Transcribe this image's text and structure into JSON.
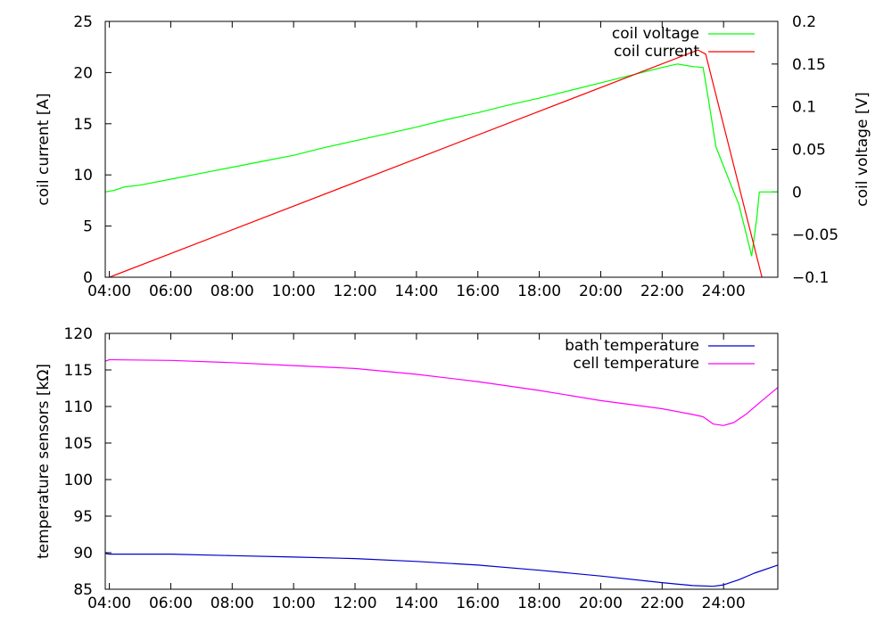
{
  "chart_data": [
    {
      "type": "line",
      "ylabel": "coil current [A]",
      "y2label": "coil voltage [V]",
      "xlim": [
        "03:52",
        "25:46"
      ],
      "ylim": [
        0,
        25
      ],
      "y2lim": [
        -0.1,
        0.2
      ],
      "x_ticks": [
        "04:00",
        "06:00",
        "08:00",
        "10:00",
        "12:00",
        "14:00",
        "16:00",
        "18:00",
        "20:00",
        "22:00",
        "24:00"
      ],
      "y_ticks": [
        "0",
        "5",
        "10",
        "15",
        "20",
        "25"
      ],
      "y2_ticks": [
        "−0.1",
        "−0.05",
        "0",
        "0.05",
        "0.1",
        "0.15",
        "0.2"
      ],
      "legend_position": "top-right",
      "series": [
        {
          "name": "coil voltage",
          "axis": "right",
          "color": "#00ff00",
          "x": [
            "03:52",
            "04:10",
            "04:30",
            "05:00",
            "06:00",
            "07:00",
            "08:00",
            "09:00",
            "10:00",
            "11:00",
            "12:00",
            "13:00",
            "14:00",
            "15:00",
            "16:00",
            "17:00",
            "18:00",
            "19:00",
            "20:00",
            "21:00",
            "22:00",
            "22:30",
            "23:00",
            "23:20",
            "23:30",
            "23:45",
            "24:00",
            "24:30",
            "24:55",
            "25:05",
            "25:10",
            "25:46"
          ],
          "y": [
            0.0,
            0.002,
            0.006,
            0.008,
            0.015,
            0.022,
            0.029,
            0.036,
            0.043,
            0.052,
            0.06,
            0.068,
            0.076,
            0.085,
            0.093,
            0.102,
            0.11,
            0.119,
            0.128,
            0.137,
            0.146,
            0.15,
            0.147,
            0.146,
            0.11,
            0.053,
            0.03,
            -0.015,
            -0.075,
            -0.03,
            0.0,
            0.0
          ]
        },
        {
          "name": "coil current",
          "axis": "left",
          "color": "#ff0000",
          "x": [
            "04:00",
            "23:10",
            "23:25",
            "25:15"
          ],
          "y": [
            0.0,
            22.2,
            21.8,
            0.0
          ]
        }
      ]
    },
    {
      "type": "line",
      "ylabel": "temperature sensors [kΩ]",
      "xlim": [
        "03:52",
        "25:46"
      ],
      "ylim": [
        85,
        120
      ],
      "x_ticks": [
        "04:00",
        "06:00",
        "08:00",
        "10:00",
        "12:00",
        "14:00",
        "16:00",
        "18:00",
        "20:00",
        "22:00",
        "24:00"
      ],
      "y_ticks": [
        "85",
        "90",
        "95",
        "100",
        "105",
        "110",
        "115",
        "120"
      ],
      "legend_position": "top-right",
      "series": [
        {
          "name": "bath temperature",
          "color": "#0000cc",
          "x": [
            "03:52",
            "04:00",
            "06:00",
            "08:00",
            "10:00",
            "12:00",
            "14:00",
            "16:00",
            "18:00",
            "20:00",
            "22:00",
            "23:00",
            "23:40",
            "24:00",
            "24:30",
            "25:00",
            "25:46"
          ],
          "y": [
            89.9,
            89.8,
            89.8,
            89.6,
            89.4,
            89.2,
            88.8,
            88.3,
            87.6,
            86.8,
            85.9,
            85.5,
            85.4,
            85.6,
            86.3,
            87.2,
            88.3
          ]
        },
        {
          "name": "cell temperature",
          "color": "#ff00ff",
          "x": [
            "03:52",
            "04:00",
            "06:00",
            "08:00",
            "10:00",
            "12:00",
            "14:00",
            "16:00",
            "18:00",
            "20:00",
            "22:00",
            "23:00",
            "23:20",
            "23:40",
            "24:00",
            "24:20",
            "24:45",
            "25:10",
            "25:46"
          ],
          "y": [
            116.2,
            116.4,
            116.3,
            116.0,
            115.6,
            115.2,
            114.4,
            113.4,
            112.2,
            110.8,
            109.7,
            108.9,
            108.6,
            107.6,
            107.4,
            107.8,
            109.0,
            110.5,
            112.6
          ]
        }
      ]
    }
  ]
}
